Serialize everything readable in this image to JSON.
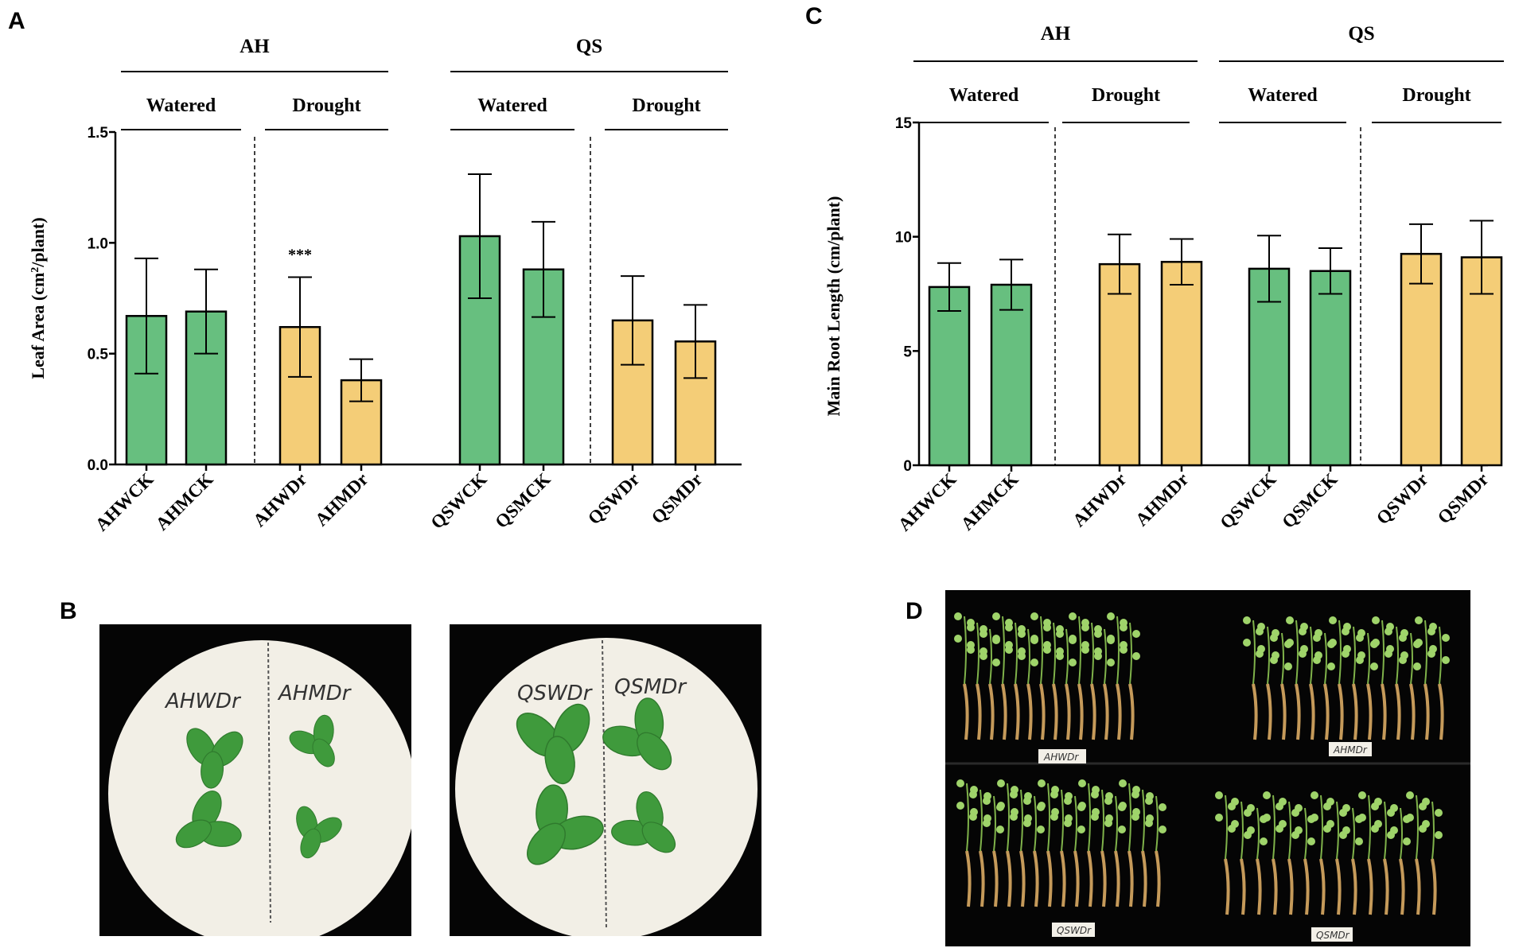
{
  "panel_letters": {
    "a": "A",
    "b": "B",
    "c": "C",
    "d": "D"
  },
  "colors": {
    "watered": "#67bf7f",
    "drought": "#f4cd77",
    "edge": "#000000",
    "photo_bg": "#050505",
    "dish": "#f2efe6",
    "leaf": "#3f9a3c",
    "root": "#c59a5a"
  },
  "chart_data": [
    {
      "panel": "A",
      "type": "bar",
      "ylabel_main": "Leaf Area  (cm",
      "ylabel_sup": "2",
      "ylabel_end": "/plant)",
      "ylim": [
        0,
        1.5
      ],
      "yticks": [
        "0.0",
        "0.5",
        "1.0",
        "1.5"
      ],
      "groups": [
        {
          "label": "AH",
          "subgroups": [
            {
              "label": "Watered"
            },
            {
              "label": "Drought"
            }
          ]
        },
        {
          "label": "QS",
          "subgroups": [
            {
              "label": "Watered"
            },
            {
              "label": "Drought"
            }
          ]
        }
      ],
      "categories": [
        "AHWCK",
        "AHMCK",
        "AHWDr",
        "AHMDr",
        "QSWCK",
        "QSMCK",
        "QSWDr",
        "QSMDr"
      ],
      "values": [
        0.67,
        0.69,
        0.62,
        0.38,
        1.03,
        0.88,
        0.65,
        0.555
      ],
      "errors": [
        0.26,
        0.19,
        0.225,
        0.095,
        0.28,
        0.215,
        0.2,
        0.165
      ],
      "condition": [
        "watered",
        "watered",
        "drought",
        "drought",
        "watered",
        "watered",
        "drought",
        "drought"
      ],
      "annotation": {
        "text": "***",
        "category_index": 2
      }
    },
    {
      "panel": "C",
      "type": "bar",
      "ylabel_main": "Main Root Length (cm/plant)",
      "ylim": [
        0,
        15
      ],
      "yticks": [
        "0",
        "5",
        "10",
        "15"
      ],
      "groups": [
        {
          "label": "AH",
          "subgroups": [
            {
              "label": "Watered"
            },
            {
              "label": "Drought"
            }
          ]
        },
        {
          "label": "QS",
          "subgroups": [
            {
              "label": "Watered"
            },
            {
              "label": "Drought"
            }
          ]
        }
      ],
      "categories": [
        "AHWCK",
        "AHMCK",
        "AHWDr",
        "AHMDr",
        "QSWCK",
        "QSMCK",
        "QSWDr",
        "QSMDr"
      ],
      "values": [
        7.8,
        7.9,
        8.8,
        8.9,
        8.6,
        8.5,
        9.25,
        9.1
      ],
      "errors": [
        1.05,
        1.1,
        1.3,
        1.0,
        1.45,
        1.0,
        1.3,
        1.6
      ],
      "condition": [
        "watered",
        "watered",
        "drought",
        "drought",
        "watered",
        "watered",
        "drought",
        "drought"
      ]
    }
  ],
  "photo_b": {
    "left_dish": {
      "label_left": "AHWDr",
      "label_right": "AHMDr"
    },
    "right_dish": {
      "label_left": "QSWDr",
      "label_right": "QSMDr"
    }
  },
  "photo_d": {
    "tags": [
      "AHWDr",
      "AHMDr",
      "QSWDr",
      "QSMDr"
    ]
  }
}
